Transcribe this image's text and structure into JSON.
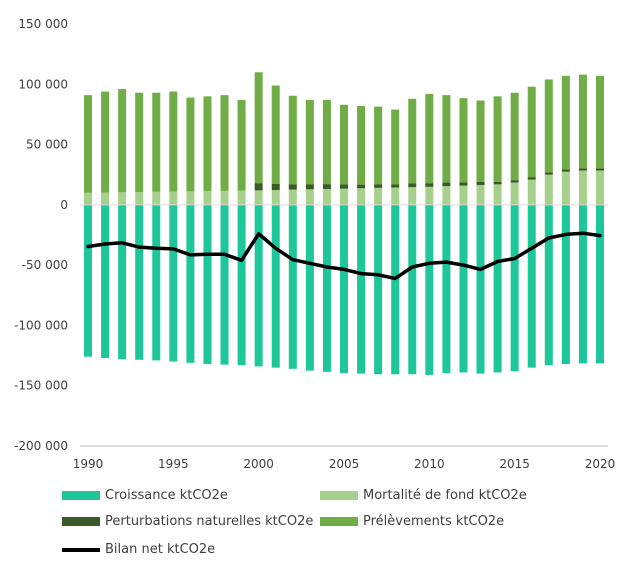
{
  "chart_data": {
    "type": "bar",
    "stacked": true,
    "x": [
      1990,
      1991,
      1992,
      1993,
      1994,
      1995,
      1996,
      1997,
      1998,
      1999,
      2000,
      2001,
      2002,
      2003,
      2004,
      2005,
      2006,
      2007,
      2008,
      2009,
      2010,
      2011,
      2012,
      2013,
      2014,
      2015,
      2016,
      2017,
      2018,
      2019,
      2020
    ],
    "x_ticks": [
      1990,
      1995,
      2000,
      2005,
      2010,
      2015,
      2020
    ],
    "y_ticks": [
      150000,
      100000,
      50000,
      0,
      -50000,
      -100000,
      -150000,
      -200000
    ],
    "y_tick_labels": [
      "150 000",
      "100 000",
      "50 000",
      "0",
      "-50 000",
      "-100 000",
      "-150 000",
      "-200 000"
    ],
    "ylim": [
      -200000,
      150000
    ],
    "grid": false,
    "legend_position": "bottom",
    "series": [
      {
        "name": "Croissance ktCO2e",
        "kind": "bar",
        "color": "#1ec79a",
        "values": [
          -126000,
          -127000,
          -128000,
          -128500,
          -129000,
          -130000,
          -131000,
          -132000,
          -132500,
          -133000,
          -134000,
          -135000,
          -136000,
          -137500,
          -138500,
          -139500,
          -140000,
          -140500,
          -140500,
          -140500,
          -141000,
          -139500,
          -139000,
          -140000,
          -139000,
          -138000,
          -135000,
          -133000,
          -132000,
          -131500,
          -131500
        ]
      },
      {
        "name": "Mortalité de fond ktCO2e",
        "kind": "bar",
        "color": "#a8d08d",
        "values": [
          10000,
          10200,
          10400,
          10600,
          10800,
          11000,
          11200,
          11400,
          11600,
          11800,
          12000,
          12300,
          12600,
          12900,
          13200,
          13500,
          13800,
          14100,
          14400,
          14700,
          15000,
          15500,
          16000,
          16500,
          17000,
          18500,
          21000,
          25000,
          27500,
          28500,
          28500
        ]
      },
      {
        "name": "Perturbations naturelles ktCO2e",
        "kind": "bar",
        "color": "#3a5a28",
        "values": [
          0,
          0,
          0,
          0,
          0,
          0,
          0,
          0,
          0,
          0,
          6000,
          5000,
          4500,
          4000,
          4000,
          3500,
          3000,
          3000,
          2500,
          3000,
          3000,
          3000,
          2500,
          2500,
          2000,
          2000,
          2000,
          1800,
          1800,
          1800,
          1800
        ]
      },
      {
        "name": "Prélèvements ktCO2e",
        "kind": "bar",
        "color": "#70ad47",
        "values": [
          81000,
          83800,
          85600,
          82400,
          82200,
          83000,
          77800,
          78600,
          79400,
          75200,
          92000,
          81700,
          73400,
          70100,
          69800,
          66000,
          65200,
          64400,
          62100,
          70300,
          74000,
          72500,
          70000,
          67500,
          71000,
          72500,
          75000,
          77200,
          77700,
          77700,
          76700
        ]
      },
      {
        "name": "Bilan net ktCO2e",
        "kind": "line",
        "color": "#000000",
        "values": [
          -34500,
          -32500,
          -31500,
          -35000,
          -36000,
          -36500,
          -41500,
          -41000,
          -41000,
          -46000,
          -24000,
          -36000,
          -45500,
          -48500,
          -51500,
          -53500,
          -57000,
          -58000,
          -61000,
          -51500,
          -48500,
          -47500,
          -50000,
          -53500,
          -47000,
          -44500,
          -36000,
          -27500,
          -24500,
          -23500,
          -25500
        ]
      }
    ]
  }
}
